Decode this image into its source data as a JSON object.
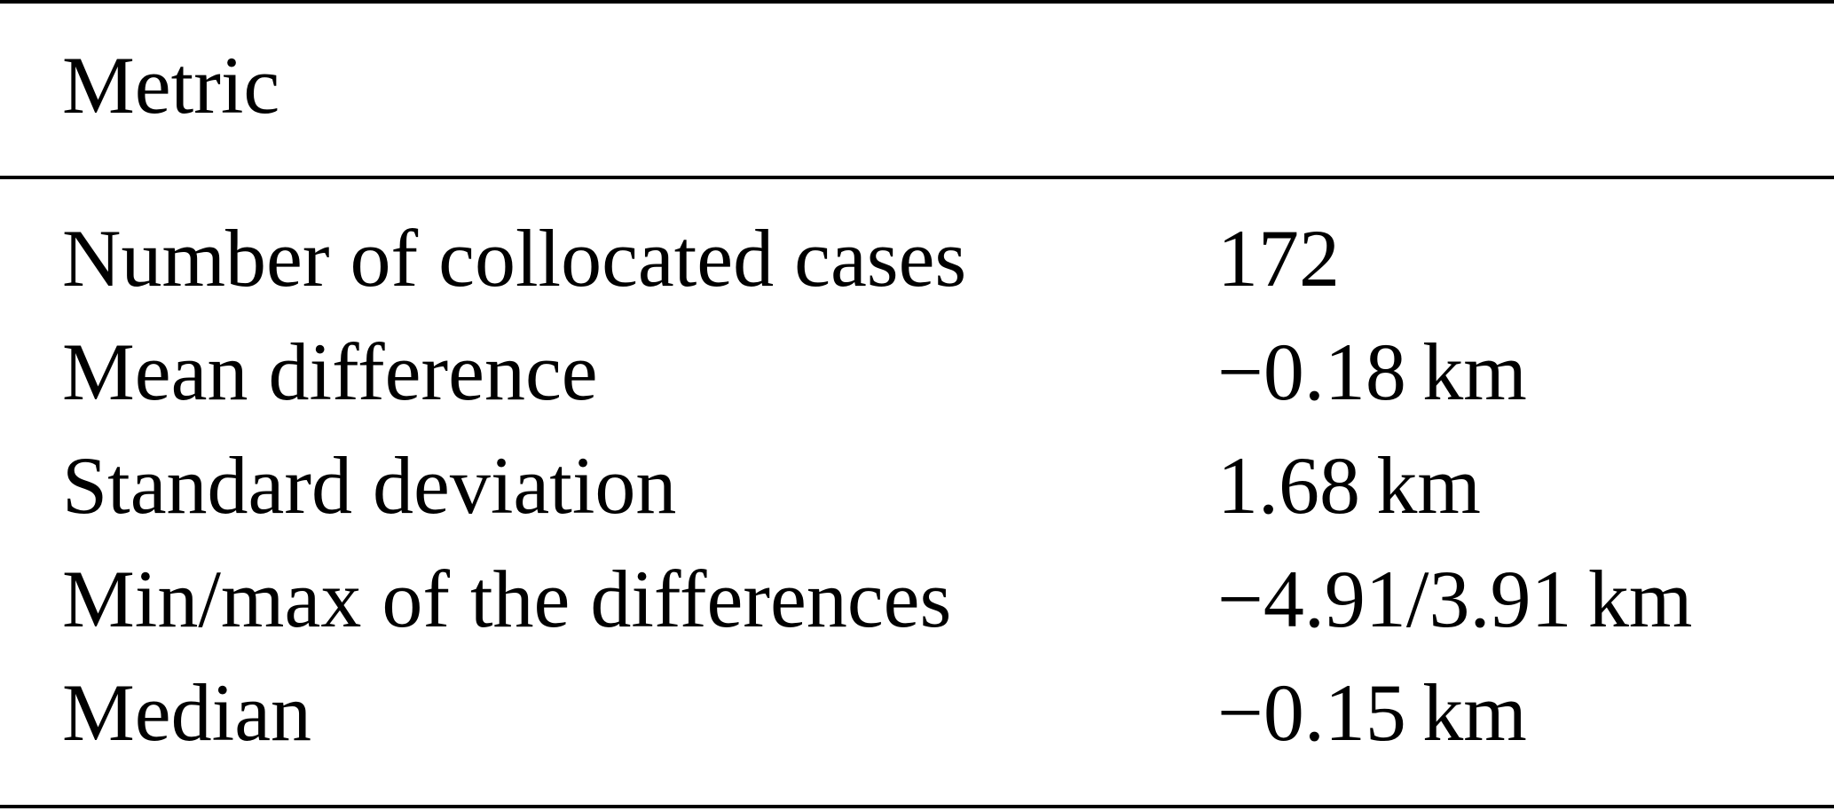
{
  "table": {
    "header": {
      "metric": "Metric"
    },
    "rows": [
      {
        "metric": "Number of collocated cases",
        "value": "172"
      },
      {
        "metric": "Mean difference",
        "value": "−0.18 km"
      },
      {
        "metric": "Standard deviation",
        "value": "1.68 km"
      },
      {
        "metric": "Min/max of the differences",
        "value": "−4.91/3.91 km"
      },
      {
        "metric": "Median",
        "value": "−0.15 km"
      }
    ]
  }
}
